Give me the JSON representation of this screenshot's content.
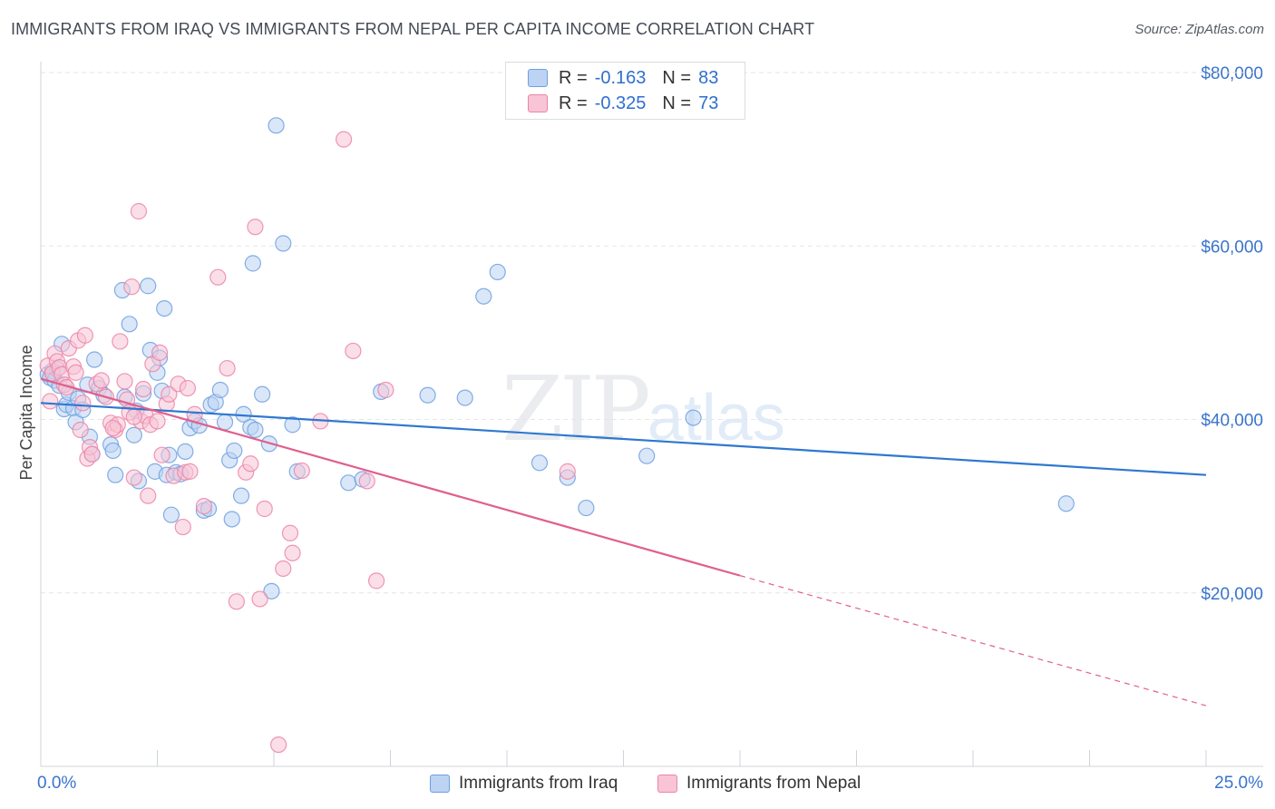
{
  "title": "IMMIGRANTS FROM IRAQ VS IMMIGRANTS FROM NEPAL PER CAPITA INCOME CORRELATION CHART",
  "source": "Source: ZipAtlas.com",
  "watermark": {
    "main": "ZIP",
    "sub": "atlas"
  },
  "colors": {
    "iraq": "#6fa0e0",
    "iraq_fill": "#bcd3f3",
    "nepal": "#ec84a8",
    "nepal_fill": "#f8c4d6",
    "iraq_line": "#2e78d0",
    "nepal_line": "#e0608c",
    "axis_text": "#3a74cc"
  },
  "legend": {
    "iraq": {
      "r_label": "R =",
      "r_value": "-0.163",
      "n_label": "N =",
      "n_value": "83"
    },
    "nepal": {
      "r_label": "R =",
      "r_value": "-0.325",
      "n_label": "N =",
      "n_value": "73"
    }
  },
  "bottom_legend": {
    "iraq": "Immigrants from Iraq",
    "nepal": "Immigrants from Nepal"
  },
  "chart_data": {
    "type": "scatter",
    "title": "IMMIGRANTS FROM IRAQ VS IMMIGRANTS FROM NEPAL PER CAPITA INCOME CORRELATION CHART",
    "xlabel": "",
    "ylabel": "Per Capita Income",
    "xlim": [
      0,
      25
    ],
    "ylim": [
      0,
      80000
    ],
    "x_tick_labels": {
      "min": "0.0%",
      "max": "25.0%"
    },
    "y_ticks": [
      20000,
      40000,
      60000,
      80000
    ],
    "y_tick_labels": [
      "$20,000",
      "$40,000",
      "$60,000",
      "$80,000"
    ],
    "grid": true,
    "series": [
      {
        "name": "Immigrants from Iraq",
        "trend": {
          "x0": 0.0,
          "y0": 41900,
          "x1": 25.0,
          "y1": 33600
        },
        "points": [
          [
            0.15,
            45200
          ],
          [
            0.2,
            44800
          ],
          [
            0.25,
            45600
          ],
          [
            0.3,
            44500
          ],
          [
            0.35,
            45800
          ],
          [
            0.4,
            43900
          ],
          [
            0.45,
            48700
          ],
          [
            0.5,
            41200
          ],
          [
            0.55,
            41700
          ],
          [
            0.6,
            43100
          ],
          [
            0.7,
            41300
          ],
          [
            0.75,
            39700
          ],
          [
            0.8,
            42400
          ],
          [
            0.9,
            41100
          ],
          [
            1.0,
            44000
          ],
          [
            1.05,
            38000
          ],
          [
            1.1,
            36000
          ],
          [
            1.15,
            46900
          ],
          [
            1.25,
            43600
          ],
          [
            1.35,
            42800
          ],
          [
            1.5,
            37100
          ],
          [
            1.55,
            36400
          ],
          [
            1.6,
            33600
          ],
          [
            1.75,
            54900
          ],
          [
            1.8,
            42600
          ],
          [
            1.9,
            51000
          ],
          [
            2.0,
            38200
          ],
          [
            2.05,
            41000
          ],
          [
            2.1,
            32900
          ],
          [
            2.2,
            43000
          ],
          [
            2.3,
            55400
          ],
          [
            2.35,
            48000
          ],
          [
            2.45,
            34000
          ],
          [
            2.5,
            45400
          ],
          [
            2.55,
            47100
          ],
          [
            2.6,
            43300
          ],
          [
            2.65,
            52800
          ],
          [
            2.7,
            33600
          ],
          [
            2.75,
            35900
          ],
          [
            2.8,
            29000
          ],
          [
            2.9,
            33900
          ],
          [
            3.0,
            33700
          ],
          [
            3.1,
            36300
          ],
          [
            3.2,
            39000
          ],
          [
            3.3,
            39800
          ],
          [
            3.4,
            39300
          ],
          [
            3.5,
            29500
          ],
          [
            3.6,
            29700
          ],
          [
            3.65,
            41700
          ],
          [
            3.75,
            42000
          ],
          [
            3.85,
            43400
          ],
          [
            3.95,
            39700
          ],
          [
            4.05,
            35300
          ],
          [
            4.1,
            28500
          ],
          [
            4.15,
            36400
          ],
          [
            4.3,
            31200
          ],
          [
            4.35,
            40600
          ],
          [
            4.5,
            39100
          ],
          [
            4.55,
            58000
          ],
          [
            4.6,
            38800
          ],
          [
            4.75,
            42900
          ],
          [
            4.9,
            37200
          ],
          [
            5.05,
            73900
          ],
          [
            5.2,
            60300
          ],
          [
            4.95,
            20200
          ],
          [
            5.4,
            39400
          ],
          [
            5.5,
            34000
          ],
          [
            6.6,
            32700
          ],
          [
            6.9,
            33100
          ],
          [
            7.3,
            43200
          ],
          [
            8.3,
            42800
          ],
          [
            9.1,
            42500
          ],
          [
            9.5,
            54200
          ],
          [
            9.8,
            57000
          ],
          [
            10.7,
            35000
          ],
          [
            11.3,
            33300
          ],
          [
            11.7,
            29800
          ],
          [
            13.0,
            35800
          ],
          [
            14.0,
            40200
          ],
          [
            22.0,
            30300
          ]
        ]
      },
      {
        "name": "Immigrants from Nepal",
        "trend": {
          "x0": 0.0,
          "y0": 44700,
          "x1": 15.0,
          "y1": 22000
        },
        "trend_dashed": {
          "x0": 15.0,
          "y0": 22000,
          "x1": 25.0,
          "y1": 7000
        },
        "points": [
          [
            0.15,
            46200
          ],
          [
            0.2,
            42100
          ],
          [
            0.25,
            45300
          ],
          [
            0.3,
            47600
          ],
          [
            0.35,
            46700
          ],
          [
            0.4,
            46000
          ],
          [
            0.45,
            45200
          ],
          [
            0.5,
            44000
          ],
          [
            0.55,
            43700
          ],
          [
            0.6,
            48200
          ],
          [
            0.7,
            46100
          ],
          [
            0.75,
            45400
          ],
          [
            0.8,
            49100
          ],
          [
            0.85,
            38800
          ],
          [
            0.9,
            41900
          ],
          [
            0.95,
            49700
          ],
          [
            1.0,
            35500
          ],
          [
            1.05,
            36800
          ],
          [
            1.1,
            36000
          ],
          [
            1.2,
            44100
          ],
          [
            1.3,
            44500
          ],
          [
            1.4,
            42600
          ],
          [
            1.5,
            39600
          ],
          [
            1.6,
            38800
          ],
          [
            1.65,
            39400
          ],
          [
            1.7,
            49000
          ],
          [
            1.8,
            44400
          ],
          [
            1.85,
            42300
          ],
          [
            1.9,
            40800
          ],
          [
            1.95,
            55300
          ],
          [
            2.0,
            33300
          ],
          [
            2.1,
            64000
          ],
          [
            2.15,
            39800
          ],
          [
            2.2,
            43500
          ],
          [
            2.25,
            40400
          ],
          [
            2.3,
            31200
          ],
          [
            2.35,
            39400
          ],
          [
            2.4,
            46400
          ],
          [
            2.5,
            39800
          ],
          [
            2.55,
            47700
          ],
          [
            2.6,
            35900
          ],
          [
            2.7,
            41800
          ],
          [
            2.75,
            42900
          ],
          [
            2.85,
            33500
          ],
          [
            2.95,
            44100
          ],
          [
            3.05,
            27600
          ],
          [
            3.1,
            33900
          ],
          [
            3.15,
            43600
          ],
          [
            3.2,
            34000
          ],
          [
            3.3,
            40600
          ],
          [
            3.5,
            30000
          ],
          [
            3.8,
            56400
          ],
          [
            4.0,
            45900
          ],
          [
            4.2,
            19000
          ],
          [
            4.4,
            33900
          ],
          [
            4.5,
            34900
          ],
          [
            4.6,
            62200
          ],
          [
            4.7,
            19300
          ],
          [
            4.8,
            29700
          ],
          [
            5.2,
            22800
          ],
          [
            5.35,
            26900
          ],
          [
            5.4,
            24600
          ],
          [
            5.6,
            34100
          ],
          [
            5.1,
            2500
          ],
          [
            6.0,
            39800
          ],
          [
            6.5,
            72300
          ],
          [
            6.7,
            47900
          ],
          [
            7.0,
            32900
          ],
          [
            7.2,
            21400
          ],
          [
            7.4,
            43400
          ],
          [
            11.3,
            34000
          ],
          [
            1.55,
            39000
          ],
          [
            2.0,
            40300
          ]
        ]
      }
    ]
  }
}
